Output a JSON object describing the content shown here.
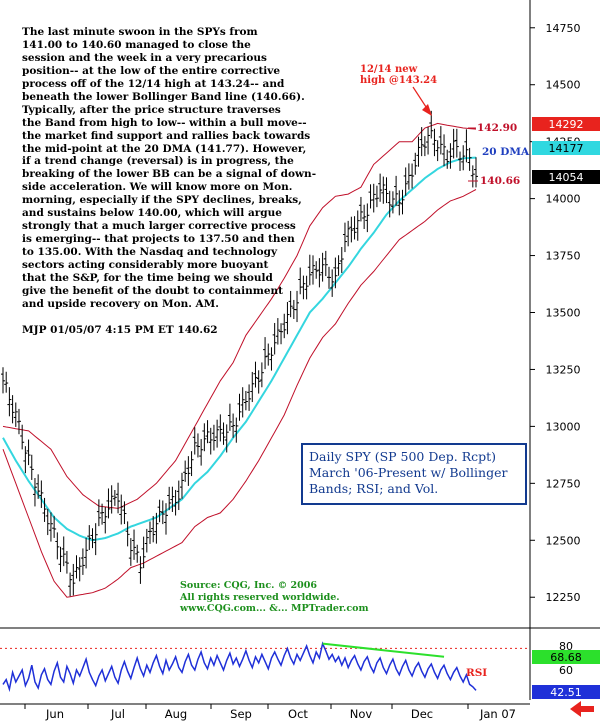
{
  "commentary": {
    "text": "The last minute swoon in the SPYs from\n141.00 to 140.60 managed to close the\nsession and the week in a very precarious\nposition-- at the low of the entire corrective\nprocess off of the 12/14 high at 143.24-- and\nbeneath the lower Bollinger Band line (140.66).\nTypically, after the price structure traverses\nthe Band from high to low-- within a bull move--\nthe market find support and rallies back towards\nthe mid-point at the 20 DMA (141.77). However,\nif a trend change (reversal) is in progress, the\nbreaking of the lower BB can be a signal of down-\nside acceleration. We will know more on Mon.\nmorning, especially if the SPY declines, breaks,\nand sustains below 140.00, which will argue\nstrongly that a much larger corrective process\nis emerging-- that projects to 137.50 and then\nto 135.00.  With the Nasdaq and technology\nsectors acting considerably more buoyant\nthat the S&P, for the time being we should\ngive the benefit of the doubt to containment\nand upside recovery on Mon. AM.",
    "signature": "MJP  01/05/07  4:15 PM ET  140.62"
  },
  "info_box": "Daily SPY (SP 500 Dep. Rcpt)\nMarch '06-Present w/ Bollinger\nBands; RSI; and Vol.",
  "source": "Source: CQG, Inc. © 2006\nAll rights reserved worldwide.\nwww.CQG.com... &... MPTrader.com",
  "chart_data": [
    {
      "type": "candlestick",
      "series_names": [
        "price",
        "upper bollinger band",
        "20 DMA",
        "lower bollinger band"
      ],
      "x_ticks": [
        "Jun",
        "Jul",
        "Aug",
        "Sep",
        "Oct",
        "Nov",
        "Dec",
        "Jan 07"
      ],
      "y_ticks": [
        "12250",
        "12500",
        "12750",
        "13000",
        "13250",
        "13500",
        "13750",
        "14000",
        "14250",
        "14500",
        "14750"
      ],
      "ylim": [
        12150,
        14850
      ],
      "annotations": [
        {
          "text": "12/14 new",
          "color": "#e8231e"
        },
        {
          "text": "high @143.24",
          "color": "#e8231e"
        },
        {
          "text": "142.90",
          "color": "#c0102a"
        },
        {
          "text": "20 DMA",
          "color": "#1f3fbf"
        },
        {
          "text": "140.66",
          "color": "#c0102a"
        }
      ],
      "price_tags": [
        {
          "value": 14292,
          "label": "14292",
          "bg": "#e8231e",
          "fg": "#ffffff"
        },
        {
          "value": 14177,
          "label": "14177",
          "bg": "#30d8e0",
          "fg": "#000000"
        },
        {
          "value": 14054,
          "label": "14054",
          "bg": "#000000",
          "fg": "#ffffff"
        }
      ],
      "price_keypoints": [
        [
          0,
          13200
        ],
        [
          4,
          13050
        ],
        [
          9,
          12800
        ],
        [
          14,
          12600
        ],
        [
          18,
          12450
        ],
        [
          22,
          12320
        ],
        [
          26,
          12450
        ],
        [
          30,
          12580
        ],
        [
          33,
          12650
        ],
        [
          36,
          12700
        ],
        [
          40,
          12480
        ],
        [
          43,
          12400
        ],
        [
          46,
          12530
        ],
        [
          50,
          12620
        ],
        [
          55,
          12700
        ],
        [
          60,
          12900
        ],
        [
          64,
          12950
        ],
        [
          68,
          12970
        ],
        [
          72,
          13000
        ],
        [
          76,
          13120
        ],
        [
          80,
          13220
        ],
        [
          84,
          13340
        ],
        [
          88,
          13450
        ],
        [
          92,
          13560
        ],
        [
          96,
          13670
        ],
        [
          100,
          13700
        ],
        [
          104,
          13640
        ],
        [
          107,
          13820
        ],
        [
          110,
          13880
        ],
        [
          114,
          13950
        ],
        [
          118,
          14050
        ],
        [
          121,
          14000
        ],
        [
          124,
          13990
        ],
        [
          127,
          14080
        ],
        [
          130,
          14200
        ],
        [
          133,
          14280
        ],
        [
          136,
          14250
        ],
        [
          139,
          14180
        ],
        [
          141,
          14230
        ],
        [
          143,
          14200
        ],
        [
          146,
          14180
        ],
        [
          148,
          14090
        ]
      ],
      "upper_band_keypoints": [
        [
          0,
          13000
        ],
        [
          8,
          12980
        ],
        [
          15,
          12900
        ],
        [
          20,
          12780
        ],
        [
          25,
          12700
        ],
        [
          30,
          12650
        ],
        [
          36,
          12640
        ],
        [
          42,
          12680
        ],
        [
          48,
          12750
        ],
        [
          54,
          12850
        ],
        [
          60,
          13000
        ],
        [
          64,
          13100
        ],
        [
          68,
          13200
        ],
        [
          72,
          13280
        ],
        [
          76,
          13400
        ],
        [
          80,
          13480
        ],
        [
          84,
          13560
        ],
        [
          88,
          13650
        ],
        [
          92,
          13750
        ],
        [
          96,
          13880
        ],
        [
          100,
          13960
        ],
        [
          104,
          14010
        ],
        [
          108,
          14020
        ],
        [
          112,
          14050
        ],
        [
          116,
          14150
        ],
        [
          120,
          14200
        ],
        [
          124,
          14250
        ],
        [
          128,
          14250
        ],
        [
          132,
          14310
        ],
        [
          136,
          14330
        ],
        [
          140,
          14320
        ],
        [
          144,
          14310
        ],
        [
          148,
          14305
        ]
      ],
      "sma20_keypoints": [
        [
          0,
          12950
        ],
        [
          4,
          12850
        ],
        [
          8,
          12760
        ],
        [
          12,
          12680
        ],
        [
          16,
          12600
        ],
        [
          20,
          12550
        ],
        [
          24,
          12520
        ],
        [
          28,
          12500
        ],
        [
          32,
          12510
        ],
        [
          36,
          12530
        ],
        [
          40,
          12560
        ],
        [
          44,
          12580
        ],
        [
          48,
          12600
        ],
        [
          52,
          12640
        ],
        [
          56,
          12680
        ],
        [
          60,
          12750
        ],
        [
          64,
          12800
        ],
        [
          68,
          12870
        ],
        [
          72,
          12950
        ],
        [
          76,
          13020
        ],
        [
          80,
          13110
        ],
        [
          84,
          13200
        ],
        [
          88,
          13300
        ],
        [
          92,
          13400
        ],
        [
          96,
          13500
        ],
        [
          100,
          13560
        ],
        [
          104,
          13630
        ],
        [
          108,
          13700
        ],
        [
          112,
          13780
        ],
        [
          116,
          13850
        ],
        [
          120,
          13930
        ],
        [
          124,
          13990
        ],
        [
          128,
          14040
        ],
        [
          132,
          14090
        ],
        [
          136,
          14130
        ],
        [
          140,
          14160
        ],
        [
          144,
          14177
        ],
        [
          148,
          14180
        ]
      ],
      "lower_band_keypoints": [
        [
          0,
          12900
        ],
        [
          4,
          12750
        ],
        [
          8,
          12600
        ],
        [
          12,
          12450
        ],
        [
          16,
          12320
        ],
        [
          20,
          12250
        ],
        [
          24,
          12260
        ],
        [
          28,
          12270
        ],
        [
          32,
          12290
        ],
        [
          36,
          12330
        ],
        [
          40,
          12380
        ],
        [
          44,
          12400
        ],
        [
          48,
          12430
        ],
        [
          52,
          12460
        ],
        [
          56,
          12490
        ],
        [
          60,
          12560
        ],
        [
          64,
          12600
        ],
        [
          68,
          12620
        ],
        [
          72,
          12680
        ],
        [
          76,
          12760
        ],
        [
          80,
          12850
        ],
        [
          84,
          12950
        ],
        [
          88,
          13050
        ],
        [
          92,
          13180
        ],
        [
          96,
          13300
        ],
        [
          100,
          13390
        ],
        [
          104,
          13450
        ],
        [
          108,
          13540
        ],
        [
          112,
          13620
        ],
        [
          116,
          13680
        ],
        [
          120,
          13750
        ],
        [
          124,
          13820
        ],
        [
          128,
          13860
        ],
        [
          132,
          13900
        ],
        [
          136,
          13950
        ],
        [
          140,
          13990
        ],
        [
          144,
          14010
        ],
        [
          148,
          14040
        ]
      ]
    },
    {
      "type": "line",
      "name": "RSI",
      "label": "RSI",
      "y_ticks": [
        "80",
        "60"
      ],
      "ylim": [
        35,
        95
      ],
      "reference_line": 78,
      "price_tags": [
        {
          "value": 68.68,
          "label": "68.68",
          "bg": "#2ce02c",
          "fg": "#000000"
        },
        {
          "value": 42.51,
          "label": "42.51",
          "bg": "#1f30d8",
          "fg": "#ffffff"
        }
      ],
      "trendline": [
        [
          100,
          82
        ],
        [
          138,
          71
        ]
      ],
      "values": [
        48,
        52,
        44,
        58,
        50,
        55,
        60,
        47,
        53,
        64,
        50,
        45,
        56,
        61,
        52,
        48,
        59,
        66,
        54,
        50,
        63,
        57,
        49,
        60,
        55,
        62,
        69,
        58,
        52,
        47,
        55,
        60,
        51,
        57,
        63,
        54,
        49,
        60,
        67,
        59,
        53,
        62,
        70,
        61,
        55,
        64,
        58,
        66,
        72,
        63,
        57,
        68,
        60,
        65,
        71,
        62,
        58,
        67,
        73,
        64,
        60,
        69,
        75,
        66,
        61,
        70,
        64,
        72,
        66,
        60,
        68,
        74,
        65,
        70,
        63,
        69,
        76,
        68,
        62,
        71,
        66,
        73,
        67,
        61,
        70,
        75,
        69,
        64,
        72,
        78,
        70,
        65,
        73,
        68,
        74,
        80,
        72,
        66,
        75,
        70,
        82,
        76,
        69,
        73,
        67,
        71,
        64,
        70,
        62,
        68,
        72,
        65,
        60,
        67,
        71,
        63,
        58,
        66,
        70,
        62,
        57,
        64,
        69,
        61,
        56,
        63,
        68,
        60,
        55,
        62,
        66,
        59,
        54,
        61,
        65,
        58,
        53,
        60,
        64,
        57,
        52,
        58,
        62,
        55,
        50,
        56,
        48,
        46,
        43
      ]
    },
    {
      "type": "axis",
      "months": [
        "Jun",
        "Jul",
        "Aug",
        "Sep",
        "Oct",
        "Nov",
        "Dec",
        "Jan 07"
      ]
    }
  ]
}
